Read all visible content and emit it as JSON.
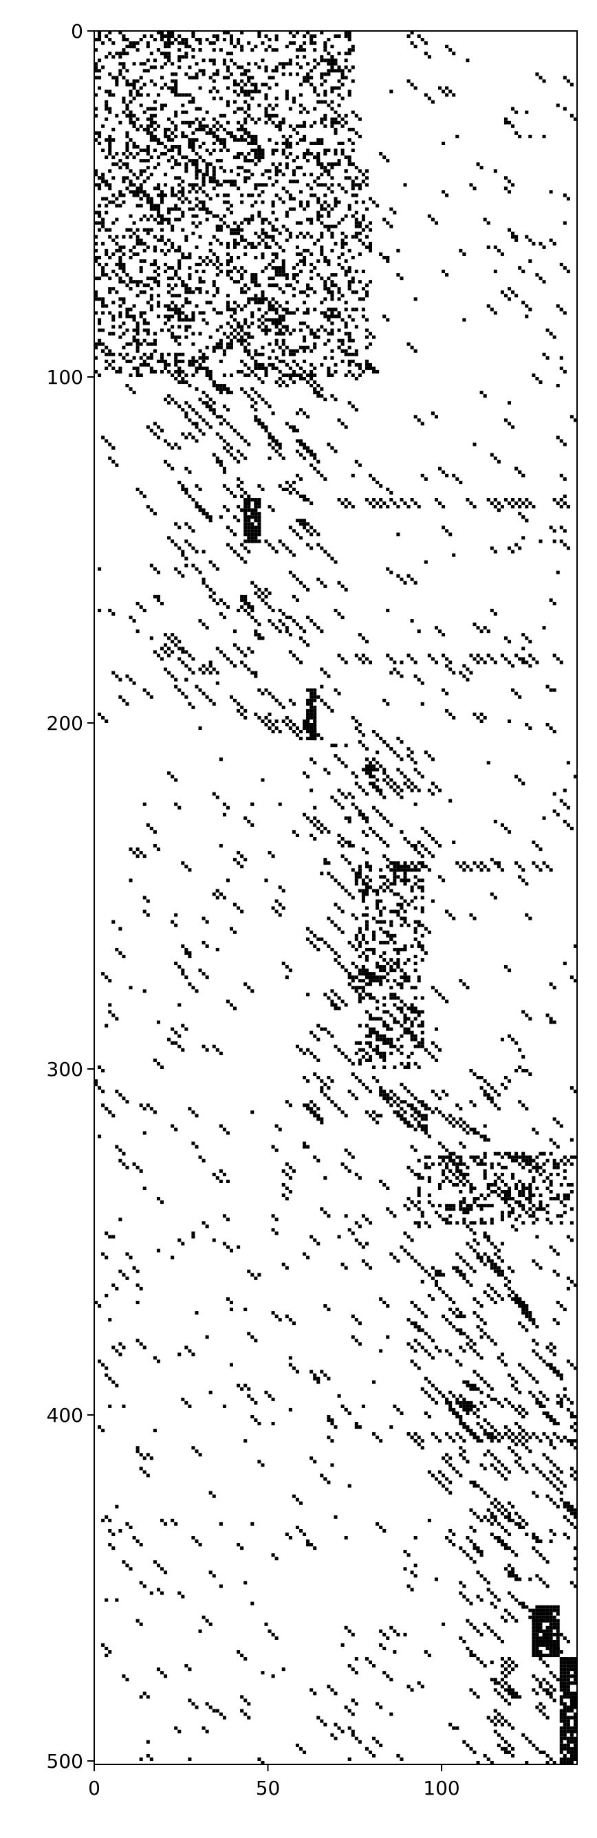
{
  "chart_data": {
    "type": "heatmap",
    "subtype": "binary-matrix (spy plot)",
    "title": "",
    "xlabel": "",
    "ylabel": "",
    "xlim": [
      0,
      139
    ],
    "ylim": [
      501,
      0
    ],
    "x_ticks": [
      0,
      50,
      100
    ],
    "y_ticks": [
      0,
      100,
      200,
      300,
      400,
      500
    ],
    "x_tick_labels": [
      "0",
      "50",
      "100"
    ],
    "y_tick_labels": [
      "0",
      "100",
      "200",
      "300",
      "400",
      "500"
    ],
    "n_rows": 501,
    "n_cols": 139,
    "colors": {
      "filled": "#000000",
      "empty": "#ffffff"
    },
    "grid": false,
    "legend": "none",
    "dense_blocks": [
      {
        "rows": [
          135,
          148
        ],
        "cols": [
          43,
          48
        ]
      },
      {
        "rows": [
          190,
          205
        ],
        "cols": [
          61,
          64
        ]
      },
      {
        "rows": [
          324,
          345
        ],
        "cols": [
          93,
          138
        ]
      },
      {
        "rows": [
          455,
          470
        ],
        "cols": [
          126,
          134
        ]
      },
      {
        "rows": [
          470,
          501
        ],
        "cols": [
          134,
          139
        ]
      },
      {
        "rows": [
          0,
          40
        ],
        "cols": [
          0,
          75
        ]
      },
      {
        "rows": [
          40,
          100
        ],
        "cols": [
          0,
          80
        ]
      },
      {
        "rows": [
          240,
          300
        ],
        "cols": [
          75,
          95
        ]
      }
    ],
    "diagonal_stripes": [
      {
        "row_start": 0,
        "row_end": 120,
        "col_start": 0,
        "col_end": 75
      },
      {
        "row_start": 100,
        "row_end": 200,
        "col_start": 20,
        "col_end": 65
      },
      {
        "row_start": 200,
        "row_end": 320,
        "col_start": 60,
        "col_end": 95
      },
      {
        "row_start": 300,
        "row_end": 420,
        "col_start": 90,
        "col_end": 125
      },
      {
        "row_start": 380,
        "row_end": 501,
        "col_start": 105,
        "col_end": 139
      }
    ],
    "horizontal_bands": [
      {
        "row": 135,
        "cols": [
          70,
          139
        ]
      },
      {
        "row": 180,
        "cols": [
          70,
          139
        ]
      },
      {
        "row": 217,
        "cols": [
          80,
          105
        ]
      },
      {
        "row": 240,
        "cols": [
          85,
          139
        ]
      },
      {
        "row": 325,
        "cols": [
          95,
          139
        ]
      },
      {
        "row": 405,
        "cols": [
          80,
          139
        ]
      }
    ]
  }
}
